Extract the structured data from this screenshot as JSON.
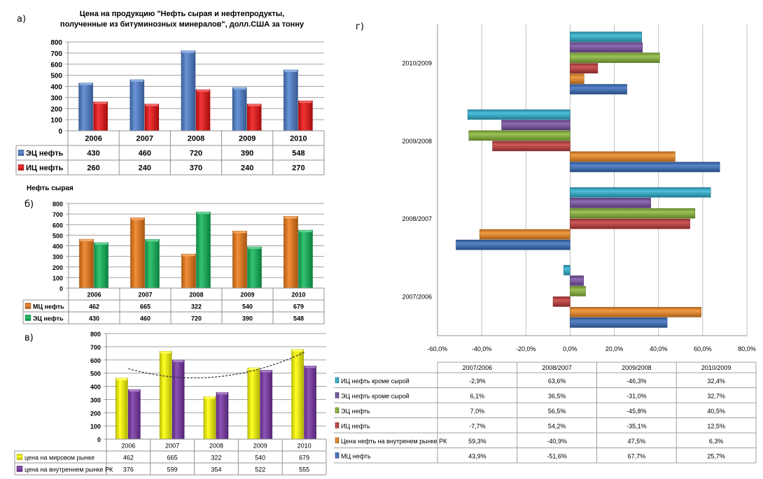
{
  "panel_labels": {
    "a": "а)",
    "b": "б)",
    "c": "в)",
    "d": "г)"
  },
  "chart_data": [
    {
      "id": "a",
      "type": "bar",
      "title": "Цена на продукцию  \"Нефть сырая  и нефтепродукты, полученные  из битуминозных  минералов\",  долл.США за тонну",
      "title_line1": "Цена на продукцию  \"Нефть сырая  и нефтепродукты,",
      "title_line2": "полученные  из битуминозных  минералов\",  долл.США за тонну",
      "categories": [
        "2006",
        "2007",
        "2008",
        "2009",
        "2010"
      ],
      "series": [
        {
          "name": "ЭЦ нефть",
          "values": [
            430,
            460,
            720,
            390,
            548
          ],
          "color": "#4f81d0"
        },
        {
          "name": "ИЦ нефть",
          "values": [
            260,
            240,
            370,
            240,
            270
          ],
          "color": "#ee1111"
        }
      ],
      "ylim": [
        0,
        800
      ],
      "yticks": [
        "0",
        "100",
        "200",
        "300",
        "400",
        "500",
        "600",
        "700",
        "800"
      ],
      "grid": true,
      "legend": "data-table"
    },
    {
      "id": "b",
      "type": "bar",
      "title": "Нефть сырая",
      "categories": [
        "2006",
        "2007",
        "2008",
        "2009",
        "2010"
      ],
      "series": [
        {
          "name": "МЦ нефть",
          "values": [
            462,
            665,
            322,
            540,
            679
          ],
          "color": "#ee7a16"
        },
        {
          "name": "ЭЦ нефть",
          "values": [
            430,
            460,
            720,
            390,
            548
          ],
          "color": "#10b85a"
        }
      ],
      "ylim": [
        0,
        800
      ],
      "yticks": [
        "0",
        "100",
        "200",
        "300",
        "400",
        "500",
        "600",
        "700",
        "800"
      ],
      "grid": true,
      "legend": "data-table"
    },
    {
      "id": "c",
      "type": "bar",
      "categories": [
        "2006",
        "2007",
        "2008",
        "2009",
        "2010"
      ],
      "series": [
        {
          "name": "цена на мировом  рынке",
          "values": [
            462,
            665,
            322,
            540,
            679
          ],
          "color": "#ffff00"
        },
        {
          "name": "цена на внутреннем  рынке РК",
          "values": [
            376,
            599,
            354,
            522,
            555
          ],
          "color": "#7a35a8"
        }
      ],
      "trendline": {
        "type": "polynomial",
        "series": "цена на мировом  рынке",
        "style": "dotted"
      },
      "ylim": [
        0,
        800
      ],
      "yticks": [
        "0",
        "100",
        "200",
        "300",
        "400",
        "500",
        "600",
        "700",
        "800"
      ],
      "grid": true,
      "legend": "data-table"
    },
    {
      "id": "d",
      "type": "bar",
      "orientation": "horizontal",
      "categories": [
        "2007/2006",
        "2008/2007",
        "2009/2008",
        "2010/2009"
      ],
      "series": [
        {
          "name": "ИЦ нефть кроме сырой",
          "values": [
            -2.9,
            63.6,
            -46.3,
            32.4
          ],
          "labels": [
            "-2,9%",
            "63,6%",
            "-46,3%",
            "32,4%"
          ],
          "color": "#2fb4d2"
        },
        {
          "name": "ЭЦ нефть кроме сырой",
          "values": [
            6.1,
            36.5,
            -31.0,
            32.7
          ],
          "labels": [
            "6,1%",
            "36,5%",
            "-31,0%",
            "32,7%"
          ],
          "color": "#7a52a6"
        },
        {
          "name": "ЭЦ нефть",
          "values": [
            7.0,
            56.5,
            -45.8,
            40.5
          ],
          "labels": [
            "7,0%",
            "56,5%",
            "-45,8%",
            "40,5%"
          ],
          "color": "#8ab83a"
        },
        {
          "name": "ИЦ нефть",
          "values": [
            -7.7,
            54.2,
            -35.1,
            12.5
          ],
          "labels": [
            "-7,7%",
            "54,2%",
            "-35,1%",
            "12,5%"
          ],
          "color": "#c43c3c"
        },
        {
          "name": "Цена нефть на внутренем  рынке РК",
          "values": [
            59.3,
            -40.9,
            47.5,
            6.3
          ],
          "labels": [
            "59,3%",
            "-40,9%",
            "47,5%",
            "6,3%"
          ],
          "color": "#f08a24"
        },
        {
          "name": "МЦ нефть",
          "values": [
            43.9,
            -51.6,
            67.7,
            25.7
          ],
          "labels": [
            "43,9%",
            "-51,6%",
            "67,7%",
            "25,7%"
          ],
          "color": "#3a6fc0"
        }
      ],
      "xlim": [
        -60,
        80
      ],
      "xticks": [
        "-60,0%",
        "-40,0%",
        "-20,0%",
        "0,0%",
        "20,0%",
        "40,0%",
        "60,0%",
        "80,0%"
      ],
      "grid": true,
      "legend": "data-table"
    }
  ]
}
